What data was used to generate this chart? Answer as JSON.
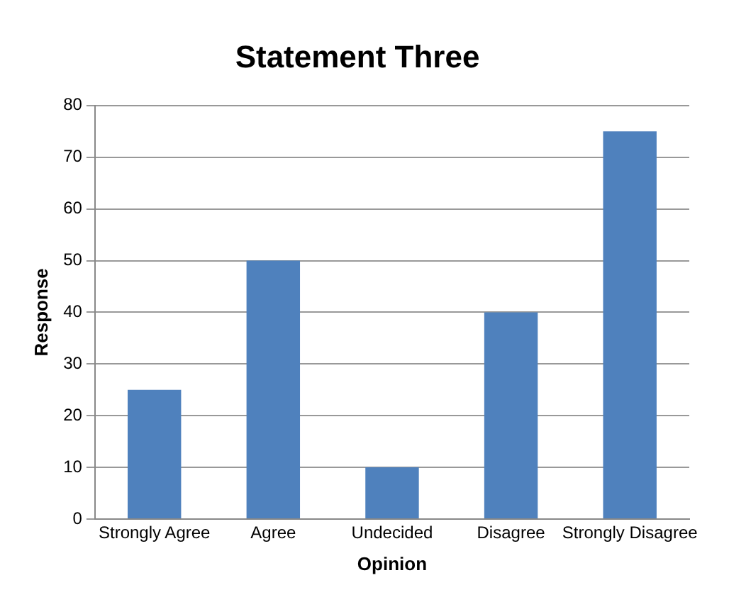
{
  "chart_data": {
    "type": "bar",
    "title": "Statement Three",
    "xlabel": "Opinion",
    "ylabel": "Response",
    "categories": [
      "Strongly Agree",
      "Agree",
      "Undecided",
      "Disagree",
      "Strongly Disagree"
    ],
    "values": [
      25,
      50,
      10,
      40,
      75
    ],
    "color": "#4f81bd",
    "ylim": [
      0,
      80
    ],
    "yticks": [
      0,
      10,
      20,
      30,
      40,
      50,
      60,
      70,
      80
    ],
    "grid": "y",
    "legend": false
  }
}
